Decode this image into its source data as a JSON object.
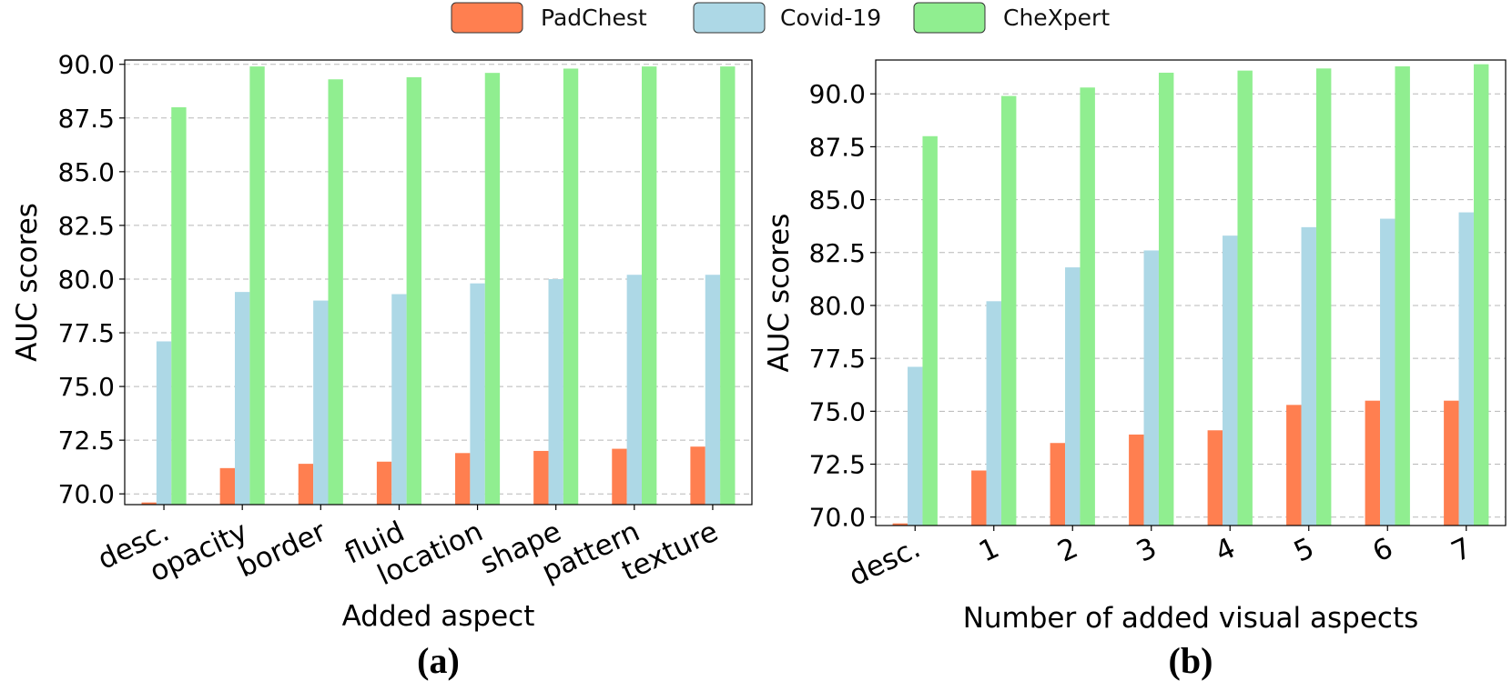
{
  "legend": {
    "items": [
      {
        "label": "PadChest",
        "color": "#FF7F50"
      },
      {
        "label": "Covid-19",
        "color": "#ADD8E6"
      },
      {
        "label": "CheXpert",
        "color": "#90EE90"
      }
    ]
  },
  "chart_data": [
    {
      "type": "bar",
      "panel_label": "(a)",
      "xlabel": "Added aspect",
      "ylabel": "AUC scores",
      "categories": [
        "desc.",
        "opacity",
        "border",
        "fluid",
        "location",
        "shape",
        "pattern",
        "texture"
      ],
      "ylim": [
        69.5,
        90.2
      ],
      "yticks": [
        "70.0",
        "72.5",
        "75.0",
        "77.5",
        "80.0",
        "82.5",
        "85.0",
        "87.5",
        "90.0"
      ],
      "grid": true,
      "series": [
        {
          "name": "PadChest",
          "color": "#FF7F50",
          "values": [
            69.6,
            71.2,
            71.4,
            71.5,
            71.9,
            72.0,
            72.1,
            72.2
          ]
        },
        {
          "name": "Covid-19",
          "color": "#ADD8E6",
          "values": [
            77.1,
            79.4,
            79.0,
            79.3,
            79.8,
            80.0,
            80.2,
            80.2
          ]
        },
        {
          "name": "CheXpert",
          "color": "#90EE90",
          "values": [
            88.0,
            89.9,
            89.3,
            89.4,
            89.6,
            89.8,
            89.9,
            89.9
          ]
        }
      ]
    },
    {
      "type": "bar",
      "panel_label": "(b)",
      "xlabel": "Number of added visual aspects",
      "ylabel": "AUC scores",
      "categories": [
        "desc.",
        "1",
        "2",
        "3",
        "4",
        "5",
        "6",
        "7"
      ],
      "ylim": [
        69.6,
        91.6
      ],
      "yticks": [
        "70.0",
        "72.5",
        "75.0",
        "77.5",
        "80.0",
        "82.5",
        "85.0",
        "87.5",
        "90.0"
      ],
      "grid": true,
      "series": [
        {
          "name": "PadChest",
          "color": "#FF7F50",
          "values": [
            69.7,
            72.2,
            73.5,
            73.9,
            74.1,
            75.3,
            75.5,
            75.5
          ]
        },
        {
          "name": "Covid-19",
          "color": "#ADD8E6",
          "values": [
            77.1,
            80.2,
            81.8,
            82.6,
            83.3,
            83.7,
            84.1,
            84.4
          ]
        },
        {
          "name": "CheXpert",
          "color": "#90EE90",
          "values": [
            88.0,
            89.9,
            90.3,
            91.0,
            91.1,
            91.2,
            91.3,
            91.4
          ]
        }
      ]
    }
  ]
}
